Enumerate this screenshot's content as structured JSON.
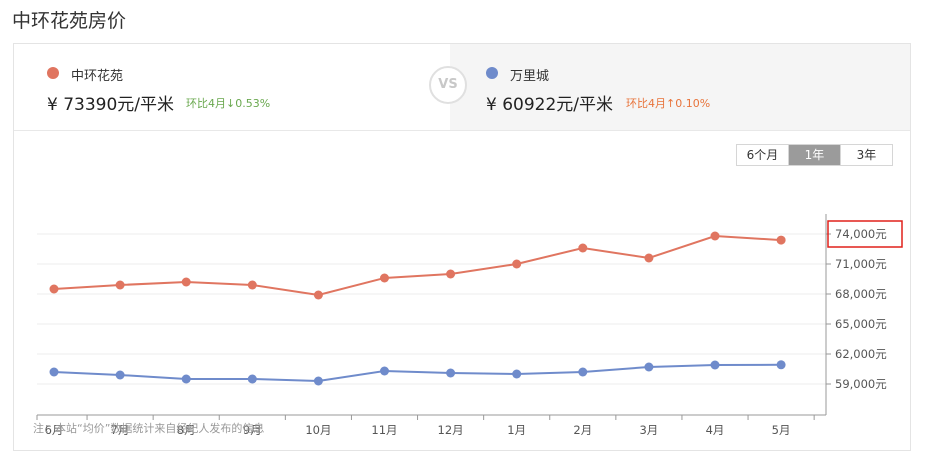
{
  "page_title": "中环花苑房价",
  "left": {
    "name": "中环花苑",
    "price": "¥ 73390元/平米",
    "change": "环比4月↓0.53%",
    "dot_color": "#e07560",
    "change_color": "#6aa84f"
  },
  "vs_label": "VS",
  "right": {
    "name": "万里城",
    "price": "¥ 60922元/平米",
    "change": "环比4月↑0.10%",
    "dot_color": "#6f8bcb",
    "change_color": "#e8743b"
  },
  "range_buttons": [
    {
      "label": "6个月",
      "active": false
    },
    {
      "label": "1年",
      "active": true
    },
    {
      "label": "3年",
      "active": false
    }
  ],
  "note": "注：本站“均价”数据统计来自经纪人发布的信息",
  "chart_data": {
    "type": "line",
    "categories": [
      "6月",
      "7月",
      "8月",
      "9月",
      "10月",
      "11月",
      "12月",
      "1月",
      "2月",
      "3月",
      "4月",
      "5月"
    ],
    "y_ticks": [
      59000,
      62000,
      65000,
      68000,
      71000,
      74000
    ],
    "y_tick_labels": [
      "59,000元",
      "62,000元",
      "65,000元",
      "68,000元",
      "71,000元",
      "74,000元"
    ],
    "highlighted_tick": "74,000元",
    "ylim": [
      56000,
      76000
    ],
    "grid": true,
    "series": [
      {
        "name": "中环花苑",
        "color": "#e07560",
        "values": [
          68500,
          68900,
          69200,
          68900,
          67900,
          69600,
          70000,
          71000,
          72600,
          71600,
          73800,
          73390
        ]
      },
      {
        "name": "万里城",
        "color": "#6f8bcb",
        "values": [
          60200,
          59900,
          59500,
          59500,
          59300,
          60300,
          60100,
          60000,
          60200,
          60700,
          60900,
          60922
        ]
      }
    ]
  }
}
